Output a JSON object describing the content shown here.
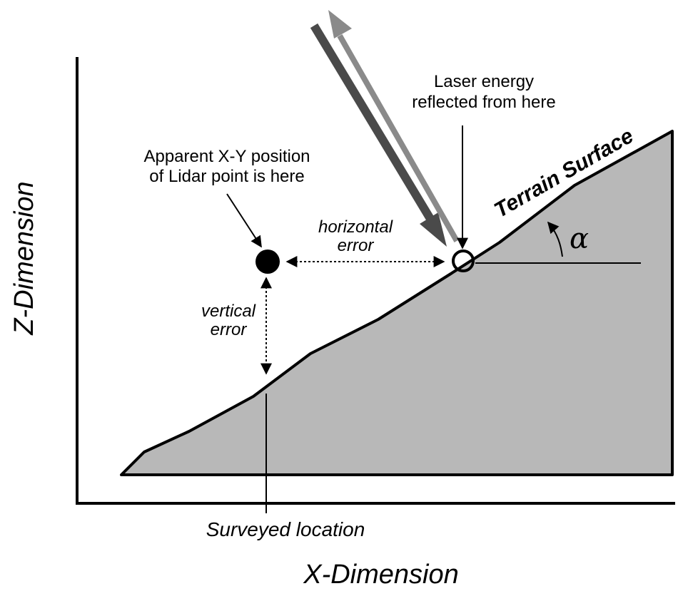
{
  "labels": {
    "y_axis": "Z-Dimension",
    "x_axis": "X-Dimension",
    "terrain": "Terrain Surface",
    "laser_line1": "Laser energy",
    "laser_line2": "reflected from here",
    "apparent_line1": "Apparent X-Y position",
    "apparent_line2": "of Lidar point is here",
    "horizontal_line1": "horizontal",
    "horizontal_line2": "error",
    "vertical_line1": "vertical",
    "vertical_line2": "error",
    "surveyed": "Surveyed location",
    "angle": "α"
  },
  "colors": {
    "terrain_fill": "#b8b8b8",
    "incoming_beam": "#4a4a4a",
    "reflected_beam": "#8a8a8a",
    "line": "#000000"
  }
}
